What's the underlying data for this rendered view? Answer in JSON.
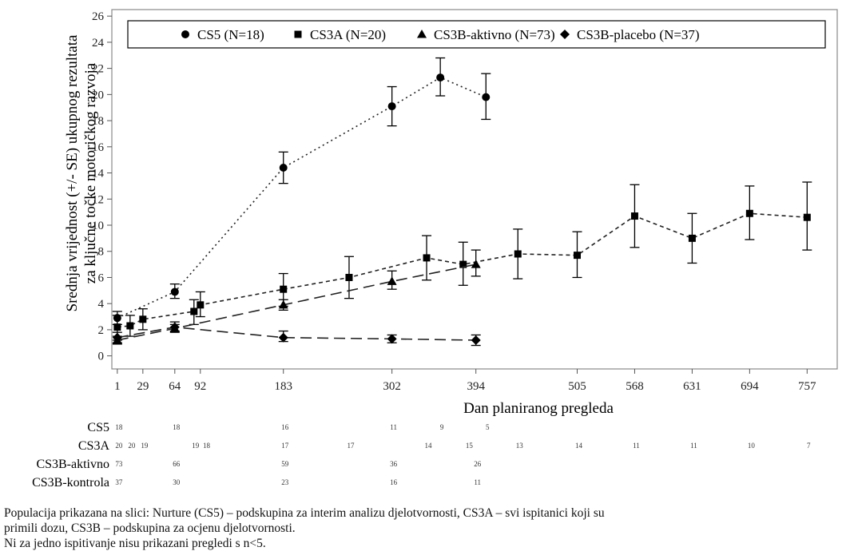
{
  "chart_data": {
    "type": "line",
    "xlabel": "Dan planiranog pregleda",
    "ylabel": "Srednja vrijednost (+/- SE) ukupnog rezultata za ključne točke motoričkog razvoja",
    "ylabel_lines": [
      "Srednja vrijednost (+/- SE) ukupnog rezultata",
      "za ključne točke motoričkog razvoja"
    ],
    "xlim": [
      -5,
      790
    ],
    "ylim": [
      -1,
      26.5
    ],
    "x_ticks": [
      1,
      29,
      64,
      92,
      183,
      302,
      394,
      505,
      568,
      631,
      694,
      757
    ],
    "x_tick_labels": [
      "1",
      "29",
      "64",
      "92",
      "183",
      "302",
      "394",
      "505",
      "568",
      "631",
      "694",
      "757"
    ],
    "y_ticks": [
      0,
      2,
      4,
      6,
      8,
      10,
      12,
      14,
      16,
      18,
      20,
      22,
      24,
      26
    ],
    "y_tick_labels": [
      "0",
      "2",
      "4",
      "6",
      "8",
      "10",
      "12",
      "14",
      "16",
      "18",
      "20",
      "22",
      "24",
      "26"
    ],
    "grid": false,
    "legend_position": "top",
    "series": [
      {
        "name": "CS5 (N=18)",
        "marker": "circle",
        "line_style": "dotted",
        "points": [
          {
            "x": 1,
            "y": 2.9,
            "lo": 2.4,
            "hi": 3.4
          },
          {
            "x": 64,
            "y": 4.9,
            "lo": 4.4,
            "hi": 5.5
          },
          {
            "x": 183,
            "y": 14.4,
            "lo": 13.2,
            "hi": 15.6
          },
          {
            "x": 302,
            "y": 19.1,
            "lo": 17.6,
            "hi": 20.6
          },
          {
            "x": 355,
            "y": 21.3,
            "lo": 19.9,
            "hi": 22.8
          },
          {
            "x": 405,
            "y": 19.8,
            "lo": 18.1,
            "hi": 21.6
          }
        ]
      },
      {
        "name": "CS3A (N=20)",
        "marker": "square",
        "line_style": "short-dash",
        "points": [
          {
            "x": 1,
            "y": 2.2,
            "lo": 1.2,
            "hi": 3.1
          },
          {
            "x": 15,
            "y": 2.3,
            "lo": 1.5,
            "hi": 3.1
          },
          {
            "x": 29,
            "y": 2.8,
            "lo": 2.0,
            "hi": 3.6
          },
          {
            "x": 85,
            "y": 3.4,
            "lo": 2.4,
            "hi": 4.3
          },
          {
            "x": 92,
            "y": 3.9,
            "lo": 3.0,
            "hi": 4.9
          },
          {
            "x": 183,
            "y": 5.1,
            "lo": 3.8,
            "hi": 6.3
          },
          {
            "x": 255,
            "y": 6.0,
            "lo": 4.4,
            "hi": 7.6
          },
          {
            "x": 340,
            "y": 7.5,
            "lo": 5.8,
            "hi": 9.2
          },
          {
            "x": 380,
            "y": 7.0,
            "lo": 5.4,
            "hi": 8.7
          },
          {
            "x": 440,
            "y": 7.8,
            "lo": 5.9,
            "hi": 9.7
          },
          {
            "x": 505,
            "y": 7.7,
            "lo": 6.0,
            "hi": 9.5
          },
          {
            "x": 568,
            "y": 10.7,
            "lo": 8.3,
            "hi": 13.1
          },
          {
            "x": 631,
            "y": 9.0,
            "lo": 7.1,
            "hi": 10.9
          },
          {
            "x": 694,
            "y": 10.9,
            "lo": 8.9,
            "hi": 13.0
          },
          {
            "x": 757,
            "y": 10.6,
            "lo": 8.1,
            "hi": 13.3
          }
        ]
      },
      {
        "name": "CS3B-aktivno (N=73)",
        "marker": "triangle",
        "line_style": "long-dash",
        "points": [
          {
            "x": 1,
            "y": 1.2,
            "lo": 0.9,
            "hi": 1.5
          },
          {
            "x": 64,
            "y": 2.1,
            "lo": 1.8,
            "hi": 2.4
          },
          {
            "x": 183,
            "y": 3.9,
            "lo": 3.5,
            "hi": 4.3
          },
          {
            "x": 302,
            "y": 5.7,
            "lo": 5.1,
            "hi": 6.5
          },
          {
            "x": 394,
            "y": 7.0,
            "lo": 6.1,
            "hi": 8.1
          }
        ]
      },
      {
        "name": "CS3B-placebo (N=37)",
        "marker": "diamond",
        "line_style": "long-dash",
        "points": [
          {
            "x": 1,
            "y": 1.4,
            "lo": 1.0,
            "hi": 1.8
          },
          {
            "x": 64,
            "y": 2.2,
            "lo": 1.9,
            "hi": 2.6
          },
          {
            "x": 183,
            "y": 1.4,
            "lo": 1.1,
            "hi": 1.9
          },
          {
            "x": 302,
            "y": 1.3,
            "lo": 1.0,
            "hi": 1.6
          },
          {
            "x": 394,
            "y": 1.2,
            "lo": 0.8,
            "hi": 1.6
          }
        ]
      }
    ],
    "risk_table": [
      {
        "label": "CS5",
        "values": [
          {
            "x": 1,
            "n": "18"
          },
          {
            "x": 64,
            "n": "18"
          },
          {
            "x": 183,
            "n": "16"
          },
          {
            "x": 302,
            "n": "11"
          },
          {
            "x": 355,
            "n": "9"
          },
          {
            "x": 405,
            "n": "5"
          }
        ]
      },
      {
        "label": "CS3A",
        "values": [
          {
            "x": 1,
            "n": "20"
          },
          {
            "x": 15,
            "n": "20"
          },
          {
            "x": 29,
            "n": "19"
          },
          {
            "x": 85,
            "n": "19"
          },
          {
            "x": 97,
            "n": "18"
          },
          {
            "x": 183,
            "n": "17"
          },
          {
            "x": 255,
            "n": "17"
          },
          {
            "x": 340,
            "n": "14"
          },
          {
            "x": 385,
            "n": "15"
          },
          {
            "x": 440,
            "n": "13"
          },
          {
            "x": 505,
            "n": "14"
          },
          {
            "x": 568,
            "n": "11"
          },
          {
            "x": 631,
            "n": "11"
          },
          {
            "x": 694,
            "n": "10"
          },
          {
            "x": 757,
            "n": "7"
          }
        ]
      },
      {
        "label": "CS3B-aktivno",
        "values": [
          {
            "x": 1,
            "n": "73"
          },
          {
            "x": 64,
            "n": "66"
          },
          {
            "x": 183,
            "n": "59"
          },
          {
            "x": 302,
            "n": "36"
          },
          {
            "x": 394,
            "n": "26"
          }
        ]
      },
      {
        "label": "CS3B-kontrola",
        "values": [
          {
            "x": 1,
            "n": "37"
          },
          {
            "x": 64,
            "n": "30"
          },
          {
            "x": 183,
            "n": "23"
          },
          {
            "x": 302,
            "n": "16"
          },
          {
            "x": 394,
            "n": "11"
          }
        ]
      }
    ]
  },
  "footnotes": {
    "line1": "Populacija prikazana na slici: Nurture (CS5) – podskupina za interim analizu djelotvornosti, CS3A – svi ispitanici koji su",
    "line2": "primili dozu, CS3B – podskupina za ocjenu djelotvornosti.",
    "line3": "Ni za jedno ispitivanje nisu prikazani pregledi s n<5."
  }
}
